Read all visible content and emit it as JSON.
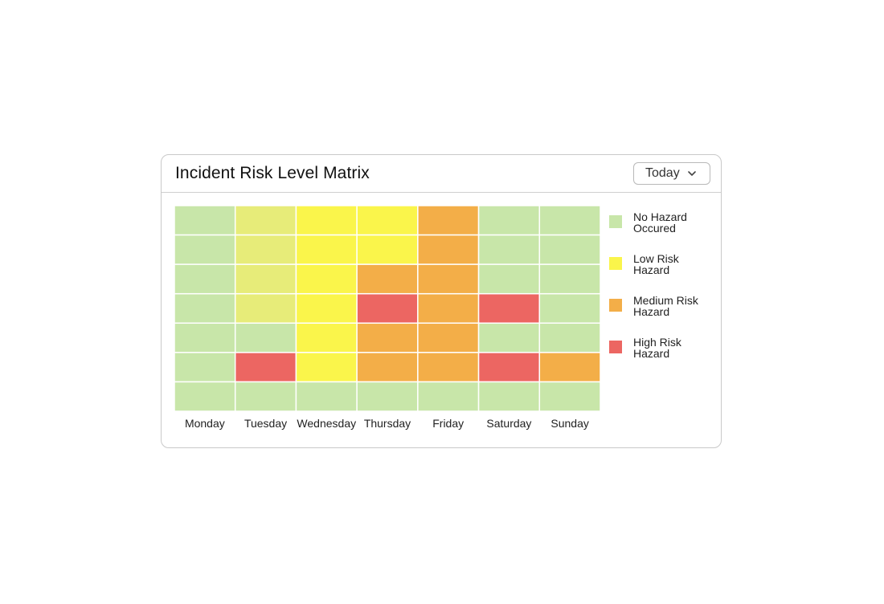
{
  "card": {
    "title": "Incident Risk Level Matrix",
    "dropdown_label": "Today",
    "dropdown_icon": "chevron-down-icon"
  },
  "chart_data": {
    "type": "heatmap",
    "title": "Incident Risk Level Matrix",
    "columns": [
      "Monday",
      "Tuesday",
      "Wednesday",
      "Thursday",
      "Friday",
      "Saturday",
      "Sunday"
    ],
    "row_count": 7,
    "levels": [
      {
        "key": "none",
        "label": "No Hazard Occured",
        "color": "#c8e6a9"
      },
      {
        "key": "light",
        "label": "",
        "color": "#e7ec79"
      },
      {
        "key": "low",
        "label": "Low Risk Hazard",
        "color": "#faf54b"
      },
      {
        "key": "medium",
        "label": "Medium Risk Hazard",
        "color": "#f3ae48"
      },
      {
        "key": "high",
        "label": "High Risk Hazard",
        "color": "#ec6662"
      }
    ],
    "cells": [
      [
        "none",
        "light",
        "low",
        "low",
        "medium",
        "none",
        "none"
      ],
      [
        "none",
        "light",
        "low",
        "low",
        "medium",
        "none",
        "none"
      ],
      [
        "none",
        "light",
        "low",
        "medium",
        "medium",
        "none",
        "none"
      ],
      [
        "none",
        "light",
        "low",
        "high",
        "medium",
        "high",
        "none"
      ],
      [
        "none",
        "none",
        "low",
        "medium",
        "medium",
        "none",
        "none"
      ],
      [
        "none",
        "high",
        "low",
        "medium",
        "medium",
        "high",
        "medium"
      ],
      [
        "none",
        "none",
        "none",
        "none",
        "none",
        "none",
        "none"
      ]
    ],
    "legend": [
      {
        "label_line1": "No Hazard",
        "label_line2": "Occured",
        "color": "#c8e6a9"
      },
      {
        "label_line1": "Low Risk",
        "label_line2": "Hazard",
        "color": "#faf54b"
      },
      {
        "label_line1": "Medium Risk",
        "label_line2": "Hazard",
        "color": "#f3ae48"
      },
      {
        "label_line1": "High Risk",
        "label_line2": "Hazard",
        "color": "#ec6662"
      }
    ],
    "legend_position": "right"
  }
}
